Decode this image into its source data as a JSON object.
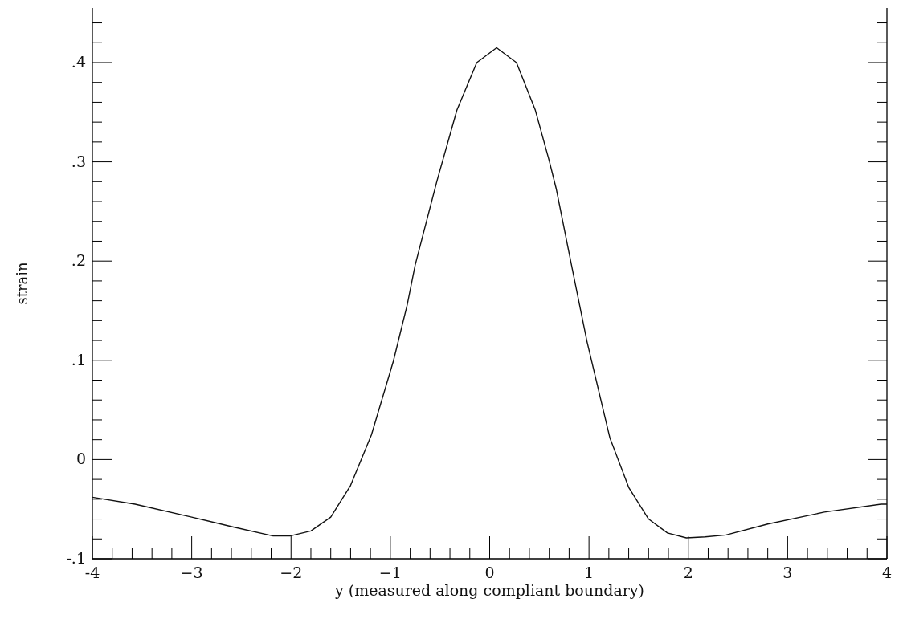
{
  "chart_data": {
    "type": "line",
    "xlabel": "y (measured along compliant boundary)",
    "ylabel": "strain",
    "series": [
      {
        "color": "#111111",
        "x": [
          -4,
          -3.57,
          -3,
          -2.58,
          -2.18,
          -2.01,
          -1.8,
          -1.6,
          -1.4,
          -1.19,
          -0.97,
          -0.83,
          -0.75,
          -0.53,
          -0.33,
          -0.13,
          0.07,
          0.27,
          0.46,
          0.6,
          0.67,
          0.83,
          0.98,
          1.21,
          1.4,
          1.6,
          1.79,
          1.98,
          2.17,
          2.38,
          2.8,
          3.37,
          3.94,
          4
        ],
        "values": [
          -0.038,
          -0.045,
          -0.058,
          -0.068,
          -0.077,
          -0.077,
          -0.072,
          -0.058,
          -0.026,
          0.025,
          0.099,
          0.156,
          0.196,
          0.281,
          0.352,
          0.4,
          0.415,
          0.4,
          0.352,
          0.301,
          0.273,
          0.193,
          0.119,
          0.022,
          -0.028,
          -0.06,
          -0.074,
          -0.079,
          -0.078,
          -0.076,
          -0.065,
          -0.053,
          -0.045,
          -0.045
        ]
      }
    ],
    "xlim": [
      -4,
      4
    ],
    "ylim": [
      -0.1,
      0.455
    ],
    "xticks": [
      -4,
      {
        "value": -3.8,
        "label": null
      },
      {
        "value": -3.6,
        "label": null
      },
      {
        "value": -3.4,
        "label": null
      },
      {
        "value": -3.2,
        "label": null
      },
      {
        "value": -3,
        "label": "−3"
      },
      {
        "value": -2.8,
        "label": null
      },
      {
        "value": -2.6,
        "label": null
      },
      {
        "value": -2.4,
        "label": null
      },
      {
        "value": -2.2,
        "label": null
      },
      {
        "value": -2,
        "label": "−2"
      },
      {
        "value": -1.8,
        "label": null
      },
      {
        "value": -1.6,
        "label": null
      },
      {
        "value": -1.4,
        "label": null
      },
      {
        "value": -1.2,
        "label": null
      },
      {
        "value": -1,
        "label": "−1"
      },
      {
        "value": -0.8,
        "label": null
      },
      {
        "value": -0.6,
        "label": null
      },
      {
        "value": -0.4,
        "label": null
      },
      {
        "value": -0.2,
        "label": null
      },
      0,
      {
        "value": 0.2,
        "label": null
      },
      {
        "value": 0.4,
        "label": null
      },
      {
        "value": 0.6,
        "label": null
      },
      {
        "value": 0.8,
        "label": null
      },
      1,
      {
        "value": 1.2,
        "label": null
      },
      {
        "value": 1.4,
        "label": null
      },
      {
        "value": 1.6,
        "label": null
      },
      {
        "value": 1.8,
        "label": null
      },
      2,
      {
        "value": 2.2,
        "label": null
      },
      {
        "value": 2.4,
        "label": null
      },
      {
        "value": 2.6,
        "label": null
      },
      {
        "value": 2.8,
        "label": null
      },
      3,
      {
        "value": 3.2,
        "label": null
      },
      {
        "value": 3.4,
        "label": null
      },
      {
        "value": 3.6,
        "label": null
      },
      {
        "value": 3.8,
        "label": null
      },
      4
    ],
    "yticks": [
      {
        "value": -0.1,
        "label": "-.1"
      },
      {
        "value": -0.08,
        "label": null
      },
      {
        "value": -0.06,
        "label": null
      },
      {
        "value": -0.04,
        "label": null
      },
      {
        "value": -0.02,
        "label": null
      },
      0,
      {
        "value": 0.02,
        "label": null
      },
      {
        "value": 0.04,
        "label": null
      },
      {
        "value": 0.06,
        "label": null
      },
      {
        "value": 0.08,
        "label": null
      },
      {
        "value": 0.1,
        "label": ".1"
      },
      {
        "value": 0.12,
        "label": null
      },
      {
        "value": 0.14,
        "label": null
      },
      {
        "value": 0.16,
        "label": null
      },
      {
        "value": 0.18,
        "label": null
      },
      {
        "value": 0.2,
        "label": ".2"
      },
      {
        "value": 0.22,
        "label": null
      },
      {
        "value": 0.24,
        "label": null
      },
      {
        "value": 0.26,
        "label": null
      },
      {
        "value": 0.28,
        "label": null
      },
      {
        "value": 0.3,
        "label": ".3"
      },
      {
        "value": 0.32,
        "label": null
      },
      {
        "value": 0.34,
        "label": null
      },
      {
        "value": 0.36,
        "label": null
      },
      {
        "value": 0.38,
        "label": null
      },
      {
        "value": 0.4,
        "label": ".4"
      },
      {
        "value": 0.42,
        "label": null
      },
      {
        "value": 0.44,
        "label": null
      }
    ],
    "grid": false,
    "marker": "none",
    "line_style": "solid"
  }
}
